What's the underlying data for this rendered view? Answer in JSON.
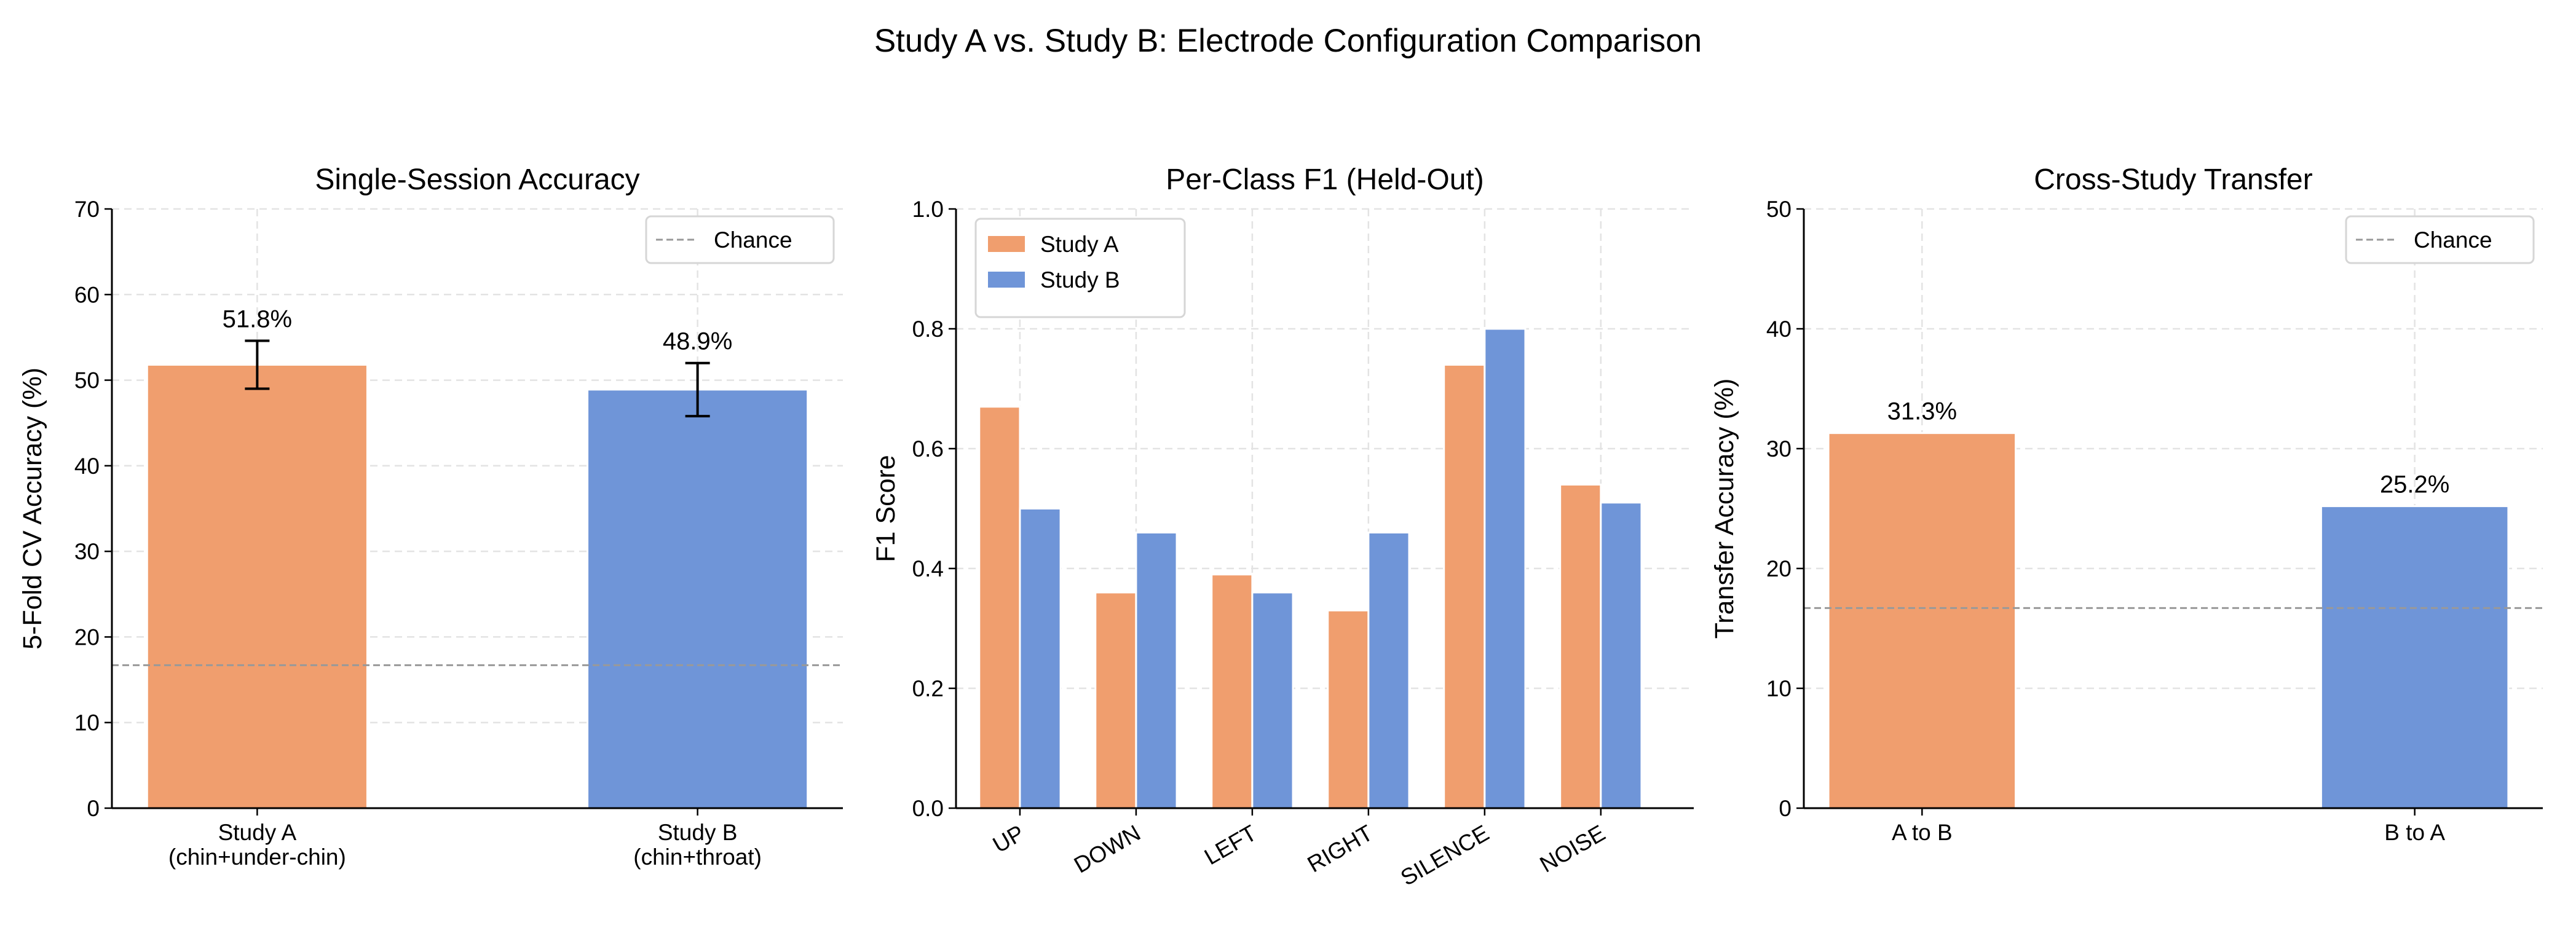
{
  "suptitle": "Study A vs. Study B: Electrode Configuration Comparison",
  "colors": {
    "study_a": "#F09E6E",
    "study_b": "#6F95D8",
    "chance": "#999999"
  },
  "chart_data": [
    {
      "type": "bar",
      "title": "Single-Session Accuracy",
      "xlabel": "",
      "ylabel": "5-Fold CV Accuracy (%)",
      "categories": [
        "Study A\n(chin+under-chin)",
        "Study B\n(chin+throat)"
      ],
      "values": [
        51.8,
        48.9
      ],
      "error": [
        2.8,
        3.1
      ],
      "data_labels": [
        "51.8%",
        "48.9%"
      ],
      "ylim": [
        0,
        70
      ],
      "yticks": [
        0,
        10,
        20,
        30,
        40,
        50,
        60,
        70
      ],
      "chance_level": 16.7,
      "legend": {
        "entries": [
          "Chance"
        ],
        "placement": "top-right"
      },
      "grid": true
    },
    {
      "type": "bar",
      "title": "Per-Class F1 (Held-Out)",
      "xlabel": "",
      "ylabel": "F1 Score",
      "categories": [
        "UP",
        "DOWN",
        "LEFT",
        "RIGHT",
        "SILENCE",
        "NOISE"
      ],
      "series": [
        {
          "name": "Study A",
          "values": [
            0.67,
            0.36,
            0.39,
            0.33,
            0.74,
            0.54
          ]
        },
        {
          "name": "Study B",
          "values": [
            0.5,
            0.46,
            0.36,
            0.46,
            0.8,
            0.51
          ]
        }
      ],
      "ylim": [
        0,
        1.0
      ],
      "yticks": [
        "0.0",
        "0.2",
        "0.4",
        "0.6",
        "0.8",
        "1.0"
      ],
      "legend": {
        "entries": [
          "Study A",
          "Study B"
        ],
        "placement": "top-left"
      },
      "grid": true
    },
    {
      "type": "bar",
      "title": "Cross-Study Transfer",
      "xlabel": "",
      "ylabel": "Transfer Accuracy (%)",
      "categories": [
        "A to B",
        "B to A"
      ],
      "values": [
        31.3,
        25.2
      ],
      "data_labels": [
        "31.3%",
        "25.2%"
      ],
      "ylim": [
        0,
        50
      ],
      "yticks": [
        0,
        10,
        20,
        30,
        40,
        50
      ],
      "chance_level": 16.7,
      "legend": {
        "entries": [
          "Chance"
        ],
        "placement": "top-right"
      },
      "grid": true
    }
  ]
}
